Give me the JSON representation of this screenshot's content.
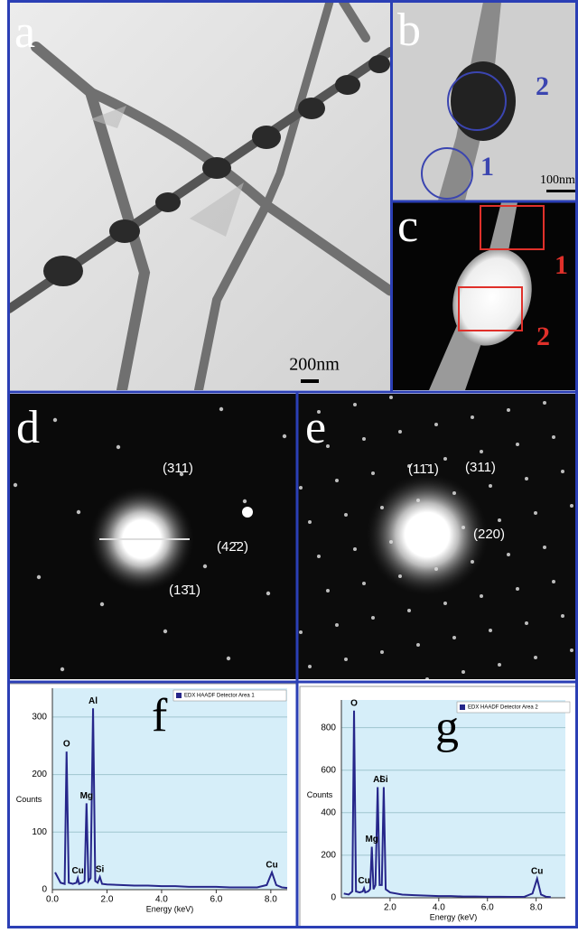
{
  "panels": {
    "a": {
      "label": "a",
      "scale_bar": "200nm"
    },
    "b": {
      "label": "b",
      "markers": [
        "2",
        "1"
      ],
      "scale_bar": "100nm"
    },
    "c": {
      "label": "c",
      "markers": [
        "1",
        "2"
      ]
    },
    "d": {
      "label": "d",
      "indices": [
        "(311)",
        "(42̄2)",
        "(13̄1)"
      ]
    },
    "e": {
      "label": "e",
      "indices": [
        "(11̄1)",
        "(311)",
        "(220)"
      ]
    }
  },
  "chart_data": [
    {
      "type": "line",
      "panel_label": "f",
      "x_label": "Energy (keV)",
      "y_label": "Counts",
      "x": [
        0.1,
        0.3,
        0.45,
        0.52,
        0.6,
        0.75,
        0.88,
        0.93,
        0.98,
        1.1,
        1.18,
        1.25,
        1.32,
        1.4,
        1.49,
        1.57,
        1.66,
        1.74,
        1.82,
        2.0,
        2.5,
        3.0,
        3.5,
        4.0,
        4.5,
        5.0,
        5.5,
        6.0,
        6.5,
        7.0,
        7.5,
        7.85,
        8.04,
        8.2,
        8.4,
        8.6
      ],
      "series": [
        {
          "name": "EDX HAADF Detector Area 1",
          "color": "#26268a",
          "values": [
            30,
            12,
            10,
            240,
            12,
            10,
            12,
            20,
            10,
            12,
            15,
            150,
            15,
            20,
            315,
            15,
            12,
            22,
            10,
            9,
            8,
            7,
            7,
            6,
            6,
            5,
            5,
            5,
            4,
            4,
            4,
            8,
            30,
            8,
            4,
            3
          ]
        }
      ],
      "xlim": [
        0,
        8.6
      ],
      "ylim": [
        0,
        350
      ],
      "xticks": [
        {
          "value": 0,
          "label": "0.0"
        },
        {
          "value": 2,
          "label": "2.0"
        },
        {
          "value": 4,
          "label": "4.0"
        },
        {
          "value": 6,
          "label": "6.0"
        },
        {
          "value": 8,
          "label": "8.0"
        }
      ],
      "yticks": [
        0,
        100,
        200,
        300
      ],
      "grid": true,
      "annotations": [
        {
          "text": "O",
          "x": 0.52,
          "y": 240
        },
        {
          "text": "Cu",
          "x": 0.93,
          "y": 20
        },
        {
          "text": "Mg",
          "x": 1.25,
          "y": 150
        },
        {
          "text": "Al",
          "x": 1.49,
          "y": 315
        },
        {
          "text": "Si",
          "x": 1.74,
          "y": 22
        },
        {
          "text": "Cu",
          "x": 8.04,
          "y": 30
        }
      ]
    },
    {
      "type": "line",
      "panel_label": "g",
      "x_label": "Energy (keV)",
      "y_label": "Counts",
      "x": [
        0.1,
        0.3,
        0.45,
        0.52,
        0.6,
        0.75,
        0.88,
        0.93,
        0.98,
        1.1,
        1.18,
        1.25,
        1.32,
        1.4,
        1.49,
        1.57,
        1.66,
        1.74,
        1.82,
        2.0,
        2.5,
        3.0,
        3.5,
        4.0,
        4.5,
        5.0,
        5.5,
        6.0,
        6.5,
        7.0,
        7.5,
        7.85,
        8.04,
        8.2,
        8.4,
        8.6
      ],
      "series": [
        {
          "name": "EDX HAADF Detector Area 2",
          "color": "#26268a",
          "values": [
            20,
            15,
            30,
            880,
            30,
            25,
            30,
            45,
            25,
            30,
            40,
            240,
            40,
            60,
            520,
            60,
            60,
            520,
            40,
            25,
            15,
            12,
            10,
            8,
            8,
            6,
            6,
            5,
            5,
            4,
            4,
            20,
            90,
            15,
            5,
            3
          ]
        }
      ],
      "xlim": [
        0,
        9.2
      ],
      "ylim": [
        0,
        930
      ],
      "xticks": [
        {
          "value": 2,
          "label": "2.0"
        },
        {
          "value": 4,
          "label": "4.0"
        },
        {
          "value": 6,
          "label": "6.0"
        },
        {
          "value": 8,
          "label": "8.0"
        }
      ],
      "yticks": [
        0,
        200,
        400,
        600,
        800
      ],
      "grid": true,
      "annotations": [
        {
          "text": "O",
          "x": 0.52,
          "y": 880
        },
        {
          "text": "Cu",
          "x": 0.93,
          "y": 45
        },
        {
          "text": "Mg",
          "x": 1.25,
          "y": 240
        },
        {
          "text": "Al",
          "x": 1.49,
          "y": 520
        },
        {
          "text": "Si",
          "x": 1.74,
          "y": 520
        },
        {
          "text": "Cu",
          "x": 8.04,
          "y": 90
        }
      ]
    }
  ]
}
